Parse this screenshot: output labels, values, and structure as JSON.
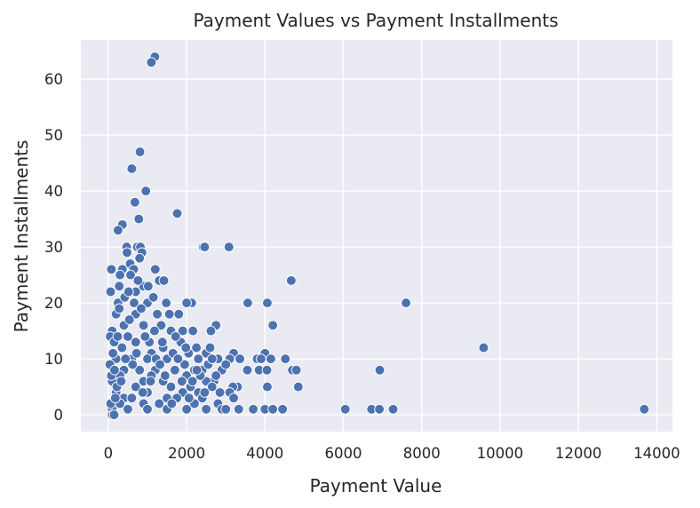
{
  "chart_data": {
    "type": "scatter",
    "title": "Payment Values vs Payment Installments",
    "xlabel": "Payment Value",
    "ylabel": "Payment Installments",
    "xlim": [
      -700,
      14400
    ],
    "ylim": [
      -3,
      67
    ],
    "x_ticks": [
      0,
      2000,
      4000,
      6000,
      8000,
      10000,
      12000,
      14000
    ],
    "y_ticks": [
      0,
      10,
      20,
      30,
      40,
      50,
      60
    ],
    "grid": true,
    "legend": "none",
    "colors": {
      "background": "#eaeaf2",
      "point": "#4c72b0",
      "grid": "#ffffff"
    },
    "points": [
      [
        1190,
        64
      ],
      [
        1100,
        63
      ],
      [
        810,
        47
      ],
      [
        600,
        44
      ],
      [
        960,
        40
      ],
      [
        680,
        38
      ],
      [
        780,
        35
      ],
      [
        1760,
        36
      ],
      [
        360,
        34
      ],
      [
        250,
        33
      ],
      [
        470,
        30
      ],
      [
        740,
        30
      ],
      [
        820,
        30
      ],
      [
        2420,
        30
      ],
      [
        2460,
        30
      ],
      [
        3080,
        30
      ],
      [
        480,
        29
      ],
      [
        860,
        29
      ],
      [
        800,
        28
      ],
      [
        560,
        27
      ],
      [
        360,
        26
      ],
      [
        80,
        26
      ],
      [
        650,
        26
      ],
      [
        1200,
        26
      ],
      [
        300,
        25
      ],
      [
        570,
        25
      ],
      [
        4670,
        24
      ],
      [
        1300,
        24
      ],
      [
        900,
        23
      ],
      [
        280,
        23
      ],
      [
        60,
        22
      ],
      [
        700,
        22
      ],
      [
        1480,
        20
      ],
      [
        2130,
        20
      ],
      [
        3560,
        20
      ],
      [
        4060,
        20
      ],
      [
        7600,
        20
      ],
      [
        2000,
        20
      ],
      [
        250,
        20
      ],
      [
        1000,
        20
      ],
      [
        1800,
        18
      ],
      [
        200,
        18
      ],
      [
        700,
        18
      ],
      [
        1250,
        18
      ],
      [
        4200,
        16
      ],
      [
        2750,
        16
      ],
      [
        400,
        16
      ],
      [
        900,
        16
      ],
      [
        1600,
        15
      ],
      [
        2620,
        15
      ],
      [
        1900,
        15
      ],
      [
        100,
        15
      ],
      [
        50,
        14
      ],
      [
        700,
        13
      ],
      [
        150,
        13
      ],
      [
        1400,
        12
      ],
      [
        9580,
        12
      ],
      [
        3200,
        11
      ],
      [
        4000,
        11
      ],
      [
        1100,
        11
      ],
      [
        2500,
        11
      ],
      [
        3100,
        10
      ],
      [
        3800,
        10
      ],
      [
        4150,
        10
      ],
      [
        4520,
        10
      ],
      [
        3900,
        10
      ],
      [
        2800,
        10
      ],
      [
        2300,
        10
      ],
      [
        1800,
        10
      ],
      [
        600,
        10
      ],
      [
        200,
        10
      ],
      [
        1000,
        10
      ],
      [
        1500,
        10
      ],
      [
        3360,
        10
      ],
      [
        4700,
        8
      ],
      [
        4800,
        8
      ],
      [
        6930,
        8
      ],
      [
        3550,
        8
      ],
      [
        3850,
        8
      ],
      [
        4050,
        8
      ],
      [
        2900,
        8
      ],
      [
        2200,
        8
      ],
      [
        1200,
        8
      ],
      [
        400,
        8
      ],
      [
        2400,
        8
      ],
      [
        1700,
        8
      ],
      [
        800,
        8
      ],
      [
        300,
        7
      ],
      [
        1100,
        7
      ],
      [
        2000,
        7
      ],
      [
        2700,
        6
      ],
      [
        900,
        6
      ],
      [
        1400,
        6
      ],
      [
        100,
        6
      ],
      [
        2500,
        6
      ],
      [
        4850,
        5
      ],
      [
        4060,
        5
      ],
      [
        3300,
        5
      ],
      [
        3180,
        5
      ],
      [
        2650,
        5
      ],
      [
        1600,
        5
      ],
      [
        700,
        5
      ],
      [
        2100,
        5
      ],
      [
        1000,
        4
      ],
      [
        1900,
        4
      ],
      [
        3100,
        4
      ],
      [
        200,
        4
      ],
      [
        2300,
        4
      ],
      [
        1500,
        3
      ],
      [
        3200,
        3
      ],
      [
        2400,
        3
      ],
      [
        400,
        3
      ],
      [
        900,
        2
      ],
      [
        2200,
        2
      ],
      [
        2800,
        2
      ],
      [
        1300,
        2
      ],
      [
        300,
        2
      ],
      [
        100,
        1
      ],
      [
        1000,
        1
      ],
      [
        2000,
        1
      ],
      [
        2900,
        1
      ],
      [
        3330,
        1
      ],
      [
        3700,
        1
      ],
      [
        4000,
        1
      ],
      [
        4200,
        1
      ],
      [
        4450,
        1
      ],
      [
        6050,
        1
      ],
      [
        6720,
        1
      ],
      [
        6920,
        1
      ],
      [
        7270,
        1
      ],
      [
        13680,
        1
      ],
      [
        500,
        1
      ],
      [
        1500,
        1
      ],
      [
        2500,
        1
      ],
      [
        3000,
        1
      ],
      [
        100,
        0
      ],
      [
        150,
        0
      ],
      [
        60,
        2
      ],
      [
        220,
        5
      ],
      [
        40,
        9
      ],
      [
        120,
        11
      ],
      [
        350,
        12
      ],
      [
        500,
        14
      ],
      [
        620,
        9
      ],
      [
        180,
        3
      ],
      [
        280,
        19
      ],
      [
        420,
        21
      ],
      [
        540,
        17
      ],
      [
        760,
        24
      ],
      [
        880,
        4
      ],
      [
        1050,
        13
      ],
      [
        1150,
        21
      ],
      [
        1350,
        16
      ],
      [
        1450,
        7
      ],
      [
        1650,
        11
      ],
      [
        1750,
        3
      ],
      [
        1850,
        13
      ],
      [
        1950,
        9
      ],
      [
        2050,
        11
      ],
      [
        2150,
        6
      ],
      [
        2250,
        12
      ],
      [
        2350,
        7
      ],
      [
        2550,
        9
      ],
      [
        2650,
        10
      ],
      [
        2750,
        7
      ],
      [
        2850,
        4
      ],
      [
        3000,
        9
      ],
      [
        80,
        7
      ],
      [
        160,
        8
      ],
      [
        240,
        14
      ],
      [
        330,
        6
      ],
      [
        440,
        10
      ],
      [
        520,
        22
      ],
      [
        600,
        3
      ],
      [
        660,
        20
      ],
      [
        720,
        11
      ],
      [
        840,
        19
      ],
      [
        940,
        14
      ],
      [
        1020,
        23
      ],
      [
        1080,
        6
      ],
      [
        1180,
        15
      ],
      [
        1220,
        10
      ],
      [
        1320,
        9
      ],
      [
        1380,
        13
      ],
      [
        1420,
        24
      ],
      [
        1560,
        18
      ],
      [
        1620,
        2
      ],
      [
        1720,
        14
      ],
      [
        1780,
        10
      ],
      [
        1880,
        6
      ],
      [
        1980,
        12
      ],
      [
        2060,
        3
      ],
      [
        2160,
        15
      ],
      [
        2260,
        8
      ],
      [
        2460,
        4
      ],
      [
        2600,
        12
      ]
    ]
  }
}
